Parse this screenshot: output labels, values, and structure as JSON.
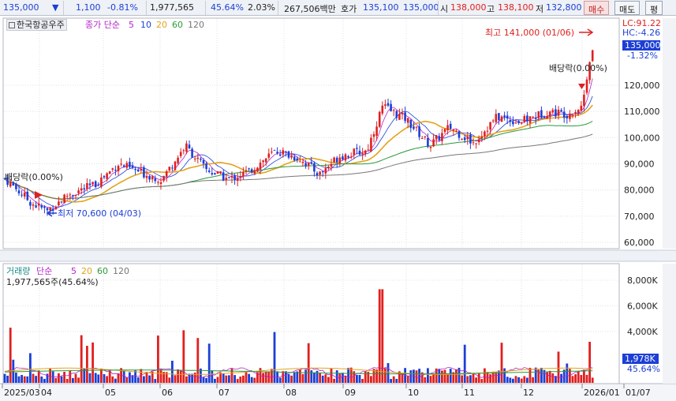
{
  "topbar": {
    "price": "135,000",
    "price_arrow": "▼",
    "change": "1,100",
    "change_pct": "-0.81%",
    "volume": "1,977,565",
    "volume_ratio": "45.64%",
    "turnover_pct": "2.03%",
    "trade_value": "267,506백만",
    "quote_label": "호가",
    "bid": "135,100",
    "ask": "135,000",
    "open_label": "시",
    "open": "138,000",
    "high_label": "고",
    "high": "138,100",
    "low_label": "저",
    "low": "132,800",
    "buy_button": "매수",
    "sell_button": "매도",
    "eval_button": "평"
  },
  "price_panel": {
    "stock_name": "한국항공우주",
    "ma_label": "종가 단순",
    "ma_periods": [
      "5",
      "10",
      "20",
      "60",
      "120"
    ],
    "lc": "LC:91.22",
    "hc": "HC:-4.26",
    "current_price_tag": "135,000",
    "current_pct_tag": "-1.32%",
    "high_annotation": "최고 141,000 (01/06)",
    "low_annotation": "최저 70,600 (04/03)",
    "dividend_right": "배당락(0.00%)",
    "dividend_left": "배당락(0.00%)",
    "y_ticks": [
      "120,000",
      "110,000",
      "100,000",
      "90,000",
      "80,000",
      "70,000",
      "60,000"
    ]
  },
  "volume_panel": {
    "title": "거래량",
    "ma_label": "단순",
    "ma_periods": [
      "5",
      "20",
      "60",
      "120"
    ],
    "current_volume": "1,977,565주(45.64%)",
    "current_tag": "1,978K",
    "current_pct": "45.64%",
    "y_ticks": [
      "8,000K",
      "6,000K",
      "4,000K"
    ]
  },
  "x_axis": {
    "labels": [
      "2025/03",
      "04",
      "05",
      "06",
      "07",
      "08",
      "09",
      "10",
      "11",
      "12",
      "2026/01",
      "01/07"
    ]
  },
  "colors": {
    "up": "#e0201f",
    "down": "#1c3fd6",
    "ma5": "#b326c8",
    "ma10": "#1c3fd6",
    "ma20": "#e3a31a",
    "ma60": "#2a9a3a",
    "ma120": "#777777"
  }
}
